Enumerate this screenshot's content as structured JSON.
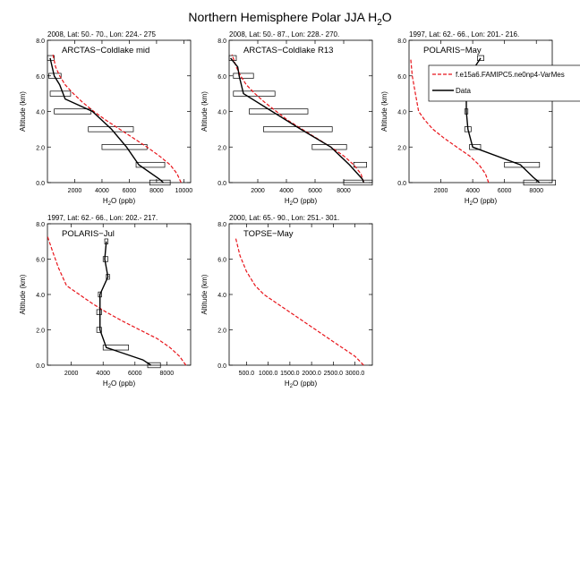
{
  "figure": {
    "title": "Northern Hemisphere Polar JJA H",
    "title_sub": "2",
    "title_suffix": "O",
    "legend": {
      "model_label": "f.e15a6.FAMIPC5.ne0np4-VarMes",
      "obs_label": "Data"
    }
  },
  "chart_data": [
    {
      "type": "line",
      "header": "2008, Lat:  50.- 70., Lon: 224.- 275",
      "label": "ARCTAS−Coldlake mid",
      "xlabel": "H2O (ppb)",
      "ylabel": "Altitude (km)",
      "xlim": [
        0,
        10500
      ],
      "ylim": [
        0,
        8
      ],
      "xticks": [
        2000,
        4000,
        6000,
        8000,
        10000
      ],
      "xticklabels": [
        "2000",
        "4000",
        "6000",
        "8000",
        "10000"
      ],
      "yticks": [
        0,
        2,
        4,
        6,
        8
      ],
      "yticklabels": [
        "0.0",
        "2.0",
        "4.0",
        "6.0",
        "8.0"
      ],
      "model": {
        "x": [
          9800,
          9500,
          9000,
          8200,
          7300,
          6300,
          5300,
          4300,
          3400,
          2600,
          1900,
          1300,
          900,
          600,
          400
        ],
        "y": [
          0,
          0.5,
          1,
          1.5,
          2,
          2.5,
          3,
          3.5,
          4,
          4.5,
          5,
          5.5,
          6,
          6.5,
          7.2
        ]
      },
      "obs": {
        "x": [
          8500,
          8200,
          6700,
          5800,
          4700,
          3300,
          1300,
          900,
          500,
          200
        ],
        "y": [
          0,
          0.2,
          1,
          2,
          3,
          4,
          4.7,
          5.5,
          6,
          7
        ]
      },
      "ranges": [
        {
          "y": 0,
          "lo": 7500,
          "hi": 9000
        },
        {
          "y": 1,
          "lo": 6500,
          "hi": 8600
        },
        {
          "y": 2,
          "lo": 4000,
          "hi": 7300
        },
        {
          "y": 3,
          "lo": 3000,
          "hi": 6300
        },
        {
          "y": 4,
          "lo": 500,
          "hi": 3200
        },
        {
          "y": 5,
          "lo": 200,
          "hi": 1700
        },
        {
          "y": 6,
          "lo": 100,
          "hi": 1000
        },
        {
          "y": 7,
          "lo": 0,
          "hi": 500
        }
      ]
    },
    {
      "type": "line",
      "header": "2008, Lat:  50.- 87., Lon: 228.- 270.",
      "label": "ARCTAS−Coldlake R13",
      "xlabel": "H2O (ppb)",
      "ylabel": "Altitude (km)",
      "xlim": [
        0,
        10000
      ],
      "ylim": [
        0,
        8
      ],
      "xticks": [
        2000,
        4000,
        6000,
        8000
      ],
      "xticklabels": [
        "2000",
        "4000",
        "6000",
        "8000"
      ],
      "yticks": [
        0,
        2,
        4,
        6,
        8
      ],
      "yticklabels": [
        "0.0",
        "2.0",
        "4.0",
        "6.0",
        "8.0"
      ],
      "model": {
        "x": [
          9400,
          9200,
          8700,
          8000,
          7100,
          6100,
          5100,
          4100,
          3300,
          2500,
          1800,
          1200,
          800,
          500,
          200
        ],
        "y": [
          0,
          0.5,
          1,
          1.5,
          2,
          2.5,
          3,
          3.5,
          4,
          4.5,
          5,
          5.5,
          6,
          6.5,
          7.2
        ]
      },
      "obs": {
        "x": [
          9400,
          9300,
          8400,
          7100,
          5000,
          3000,
          1000,
          700,
          600,
          100
        ],
        "y": [
          0,
          0.2,
          1,
          2,
          3,
          4,
          5,
          6,
          6.5,
          7
        ]
      },
      "ranges": [
        {
          "y": 0,
          "lo": 8000,
          "hi": 10000
        },
        {
          "y": 1,
          "lo": 8700,
          "hi": 9600
        },
        {
          "y": 2,
          "lo": 5800,
          "hi": 8200
        },
        {
          "y": 3,
          "lo": 2400,
          "hi": 7200
        },
        {
          "y": 4,
          "lo": 1400,
          "hi": 5500
        },
        {
          "y": 5,
          "lo": 300,
          "hi": 3200
        },
        {
          "y": 6,
          "lo": 300,
          "hi": 1700
        },
        {
          "y": 7,
          "lo": 0,
          "hi": 500
        }
      ]
    },
    {
      "type": "line",
      "header": "1997, Lat: 62.- 66., Lon: 201.- 216.",
      "label": "POLARIS−May",
      "xlabel": "H2O (ppb)",
      "ylabel": "Altitude (km)",
      "xlim": [
        0,
        9000
      ],
      "ylim": [
        0,
        8
      ],
      "xticks": [
        2000,
        4000,
        6000,
        8000
      ],
      "xticklabels": [
        "2000",
        "4000",
        "6000",
        "8000"
      ],
      "yticks": [
        0,
        2,
        4,
        6,
        8
      ],
      "yticklabels": [
        "0.0",
        "2.0",
        "4.0",
        "6.0",
        "8.0"
      ],
      "model": {
        "x": [
          5000,
          4800,
          4400,
          3800,
          3000,
          2200,
          1500,
          1000,
          600,
          400,
          200,
          100
        ],
        "y": [
          0,
          0.5,
          1,
          1.5,
          2,
          2.5,
          3,
          3.5,
          4,
          5,
          6,
          7
        ]
      },
      "obs": {
        "x": [
          8200,
          7800,
          7000,
          4000,
          3700,
          3600,
          3600,
          3400,
          4500
        ],
        "y": [
          0,
          0.3,
          1,
          2,
          3,
          4,
          5,
          5.5,
          7
        ]
      },
      "ranges": [
        {
          "y": 0,
          "lo": 7200,
          "hi": 9200
        },
        {
          "y": 1,
          "lo": 6000,
          "hi": 8200
        },
        {
          "y": 2,
          "lo": 3800,
          "hi": 4500
        },
        {
          "y": 3,
          "lo": 3500,
          "hi": 3900
        },
        {
          "y": 4,
          "lo": 3500,
          "hi": 3700
        },
        {
          "y": 5,
          "lo": 3400,
          "hi": 3800
        },
        {
          "y": 7,
          "lo": 4300,
          "hi": 4700
        }
      ]
    },
    {
      "type": "line",
      "header": "1997, Lat: 62.- 66., Lon: 202.- 217.",
      "label": "POLARIS−Jul",
      "xlabel": "H2O (ppb)",
      "ylabel": "Altitude (km)",
      "xlim": [
        500,
        9500
      ],
      "ylim": [
        0,
        8
      ],
      "xticks": [
        2000,
        4000,
        6000,
        8000
      ],
      "xticklabels": [
        "2000",
        "4000",
        "6000",
        "8000"
      ],
      "yticks": [
        0,
        2,
        4,
        6,
        8
      ],
      "yticklabels": [
        "0.0",
        "2.0",
        "4.0",
        "6.0",
        "8.0"
      ],
      "model": {
        "x": [
          9200,
          8800,
          8200,
          7400,
          6300,
          5200,
          4200,
          3300,
          2500,
          1700,
          1200,
          800,
          500
        ],
        "y": [
          0,
          0.5,
          1,
          1.5,
          2,
          2.5,
          3,
          3.5,
          4,
          4.5,
          5.5,
          6.5,
          7.3
        ]
      },
      "obs": {
        "x": [
          7000,
          6500,
          4200,
          3800,
          3800,
          3800,
          4300,
          4100,
          4200
        ],
        "y": [
          0,
          0.3,
          1,
          2,
          3,
          4,
          5,
          6,
          7
        ]
      },
      "ranges": [
        {
          "y": 0,
          "lo": 6800,
          "hi": 7600
        },
        {
          "y": 1,
          "lo": 4000,
          "hi": 5600
        },
        {
          "y": 2,
          "lo": 3600,
          "hi": 3900
        },
        {
          "y": 3,
          "lo": 3600,
          "hi": 3900
        },
        {
          "y": 4,
          "lo": 3700,
          "hi": 3900
        },
        {
          "y": 5,
          "lo": 4200,
          "hi": 4400
        },
        {
          "y": 6,
          "lo": 4000,
          "hi": 4300
        },
        {
          "y": 7,
          "lo": 4100,
          "hi": 4300
        }
      ]
    },
    {
      "type": "line",
      "header": "2000, Lat: 65.- 90., Lon: 251.- 301.",
      "label": "TOPSE−May",
      "xlabel": "H2O (ppb)",
      "ylabel": "Altitude (km)",
      "xlim": [
        100,
        3400
      ],
      "ylim": [
        0,
        8
      ],
      "xticks": [
        500,
        1000,
        1500,
        2000,
        2500,
        3000
      ],
      "xticklabels": [
        "500.0",
        "1000.0",
        "1500.0",
        "2000.0",
        "2500.0",
        "3000.0"
      ],
      "yticks": [
        0,
        2,
        4,
        6,
        8
      ],
      "yticklabels": [
        "0.0",
        "2.0",
        "4.0",
        "6.0",
        "8.0"
      ],
      "model": {
        "x": [
          3200,
          3000,
          2700,
          2400,
          2100,
          1800,
          1500,
          1200,
          900,
          700,
          500,
          350,
          250
        ],
        "y": [
          0,
          0.5,
          1,
          1.5,
          2,
          2.5,
          3,
          3.5,
          4,
          4.5,
          5.3,
          6.2,
          7.2
        ]
      },
      "obs": {
        "x": [],
        "y": []
      },
      "ranges": []
    }
  ]
}
